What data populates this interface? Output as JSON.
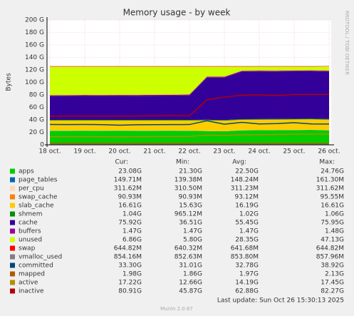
{
  "chart_data": {
    "type": "area",
    "title": "Memory usage - by week",
    "y_label": "Bytes",
    "side_label": "RRDTOOL / TOBI OETIKER",
    "categories": [
      "18 oct.",
      null,
      "19 oct.",
      null,
      "20 oct.",
      null,
      "21 oct.",
      null,
      "22 oct.",
      null,
      "23 oct.",
      null,
      "24 oct.",
      null,
      "25 oct.",
      null,
      "26 oct."
    ],
    "ylim": [
      0,
      200
    ],
    "yticks": [
      0,
      {
        "value": 20,
        "label": "20 G"
      },
      {
        "value": 40,
        "label": "40 G"
      },
      {
        "value": 60,
        "label": "60 G"
      },
      {
        "value": 80,
        "label": "80 G"
      },
      {
        "value": 100,
        "label": "100 G"
      },
      {
        "value": 120,
        "label": "120 G"
      },
      {
        "value": 140,
        "label": "140 G"
      },
      {
        "value": 160,
        "label": "160 G"
      },
      {
        "value": 180,
        "label": "180 G"
      },
      {
        "value": 200,
        "label": "200 G"
      }
    ],
    "grid": true,
    "legend_header": [
      "Cur:",
      "Min:",
      "Avg:",
      "Max:"
    ],
    "series": [
      {
        "name": "apps",
        "color": "#00cc00",
        "draw": "stack",
        "cur": "23.08G",
        "min": "21.30G",
        "avg": "22.50G",
        "max": "24.76G",
        "values": [
          22.4,
          22.4,
          22.5,
          22.4,
          22.5,
          22.4,
          22.4,
          22.5,
          22.4,
          22.0,
          21.6,
          23.2,
          23.4,
          23.5,
          23.6,
          23.8,
          23.08
        ]
      },
      {
        "name": "page_tables",
        "color": "#0066b3",
        "draw": "stack",
        "cur": "149.71M",
        "min": "139.38M",
        "avg": "148.24M",
        "max": "161.30M",
        "values": [
          0.15,
          0.15,
          0.15,
          0.15,
          0.15,
          0.15,
          0.15,
          0.15,
          0.15,
          0.15,
          0.15,
          0.15,
          0.15,
          0.15,
          0.15,
          0.15,
          0.15
        ]
      },
      {
        "name": "per_cpu",
        "color": "#ffd9b3",
        "draw": "stack",
        "cur": "311.62M",
        "min": "310.50M",
        "avg": "311.23M",
        "max": "311.62M",
        "values": [
          0.31,
          0.31,
          0.31,
          0.31,
          0.31,
          0.31,
          0.31,
          0.31,
          0.31,
          0.31,
          0.31,
          0.31,
          0.31,
          0.31,
          0.31,
          0.31,
          0.31
        ]
      },
      {
        "name": "swap_cache",
        "color": "#ff8000",
        "draw": "stack",
        "cur": "90.93M",
        "min": "90.93M",
        "avg": "93.12M",
        "max": "95.55M",
        "values": [
          0.09,
          0.09,
          0.09,
          0.09,
          0.09,
          0.09,
          0.09,
          0.09,
          0.09,
          0.09,
          0.09,
          0.09,
          0.09,
          0.09,
          0.09,
          0.09,
          0.09
        ]
      },
      {
        "name": "slab_cache",
        "color": "#ffcc00",
        "draw": "stack",
        "cur": "16.61G",
        "min": "15.63G",
        "avg": "16.19G",
        "max": "16.61G",
        "values": [
          16.0,
          16.1,
          16.0,
          16.1,
          15.9,
          16.0,
          16.1,
          16.0,
          16.1,
          16.6,
          16.5,
          16.4,
          16.3,
          16.4,
          16.5,
          16.5,
          16.61
        ]
      },
      {
        "name": "shmem",
        "color": "#008f00",
        "draw": "stack",
        "cur": "1.04G",
        "min": "965.12M",
        "avg": "1.02G",
        "max": "1.06G",
        "values": [
          1.0,
          1.0,
          1.0,
          1.0,
          1.0,
          1.0,
          1.0,
          1.0,
          1.0,
          1.0,
          1.0,
          1.0,
          1.0,
          1.0,
          1.0,
          1.0,
          1.04
        ]
      },
      {
        "name": "cache",
        "color": "#330099",
        "draw": "stack",
        "cur": "75.92G",
        "min": "36.51G",
        "avg": "55.45G",
        "max": "75.95G",
        "values": [
          38.0,
          38.1,
          38.3,
          38.2,
          38.4,
          38.5,
          38.6,
          38.8,
          39.0,
          67.5,
          68.0,
          76.0,
          76.2,
          75.8,
          76.0,
          75.9,
          75.92
        ]
      },
      {
        "name": "buffers",
        "color": "#990099",
        "draw": "stack",
        "cur": "1.47G",
        "min": "1.47G",
        "avg": "1.47G",
        "max": "1.48G",
        "values": [
          1.47,
          1.47,
          1.47,
          1.47,
          1.47,
          1.47,
          1.47,
          1.47,
          1.47,
          1.47,
          1.47,
          1.47,
          1.47,
          1.47,
          1.47,
          1.47,
          1.47
        ]
      },
      {
        "name": "unused",
        "color": "#ccff00",
        "draw": "stack",
        "cur": "6.86G",
        "min": "5.80G",
        "avg": "28.35G",
        "max": "47.13G",
        "values": [
          45.9,
          45.7,
          45.5,
          45.6,
          45.5,
          45.4,
          45.2,
          45.0,
          44.8,
          16.2,
          16.2,
          6.7,
          6.4,
          6.6,
          6.2,
          6.1,
          6.86
        ]
      },
      {
        "name": "swap",
        "color": "#ff0000",
        "draw": "stack",
        "cur": "644.82M",
        "min": "640.32M",
        "avg": "641.68M",
        "max": "644.82M",
        "values": [
          0.64,
          0.64,
          0.64,
          0.64,
          0.64,
          0.64,
          0.64,
          0.64,
          0.64,
          0.64,
          0.64,
          0.64,
          0.64,
          0.64,
          0.64,
          0.64,
          0.64
        ]
      },
      {
        "name": "vmalloc_used",
        "color": "#808080",
        "draw": "line",
        "cur": "854.16M",
        "min": "852.63M",
        "avg": "853.80M",
        "max": "857.96M",
        "values": [
          0.85,
          0.85,
          0.85,
          0.85,
          0.85,
          0.85,
          0.85,
          0.85,
          0.85,
          0.85,
          0.85,
          0.85,
          0.85,
          0.85,
          0.85,
          0.85,
          0.85
        ]
      },
      {
        "name": "committed",
        "color": "#00487d",
        "draw": "line",
        "cur": "33.30G",
        "min": "31.01G",
        "avg": "32.78G",
        "max": "38.92G",
        "values": [
          32.5,
          32.4,
          32.6,
          32.3,
          31.5,
          32.2,
          32.3,
          32.4,
          32.5,
          38.5,
          33.0,
          36.0,
          33.5,
          34.0,
          35.5,
          33.4,
          33.3
        ]
      },
      {
        "name": "mapped",
        "color": "#b35a00",
        "draw": "line",
        "cur": "1.98G",
        "min": "1.86G",
        "avg": "1.97G",
        "max": "2.13G",
        "values": [
          1.95,
          1.96,
          1.97,
          1.96,
          1.9,
          1.96,
          1.97,
          1.98,
          1.97,
          2.1,
          2.0,
          1.98,
          1.97,
          1.98,
          1.99,
          1.98,
          1.98
        ]
      },
      {
        "name": "active",
        "color": "#b38f00",
        "draw": "line",
        "cur": "17.22G",
        "min": "12.66G",
        "avg": "14.19G",
        "max": "17.45G",
        "values": [
          13.0,
          13.1,
          13.2,
          13.0,
          12.7,
          13.1,
          13.2,
          13.3,
          13.4,
          15.5,
          15.0,
          16.0,
          16.2,
          16.5,
          17.0,
          17.2,
          17.22
        ]
      },
      {
        "name": "inactive",
        "color": "#b30000",
        "draw": "line",
        "cur": "80.91G",
        "min": "45.87G",
        "avg": "62.88G",
        "max": "82.27G",
        "values": [
          46.0,
          46.1,
          46.2,
          46.1,
          45.9,
          46.3,
          46.4,
          46.5,
          46.7,
          72.0,
          76.5,
          79.5,
          80.0,
          79.0,
          80.5,
          80.8,
          80.91
        ]
      }
    ],
    "last_update": "Last update: Sun Oct 26 15:30:13 2025",
    "footer": "Munin 2.0.67"
  }
}
